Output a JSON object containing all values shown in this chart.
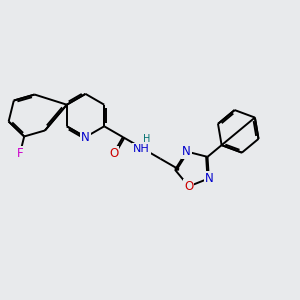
{
  "bg_color": "#e8eaec",
  "bond_color": "#000000",
  "bond_width": 1.4,
  "dbo": 0.06,
  "atom_colors": {
    "N": "#0000cc",
    "O": "#cc0000",
    "F": "#cc00cc",
    "H_N": "#007070"
  },
  "fs": 8.5,
  "title": ""
}
